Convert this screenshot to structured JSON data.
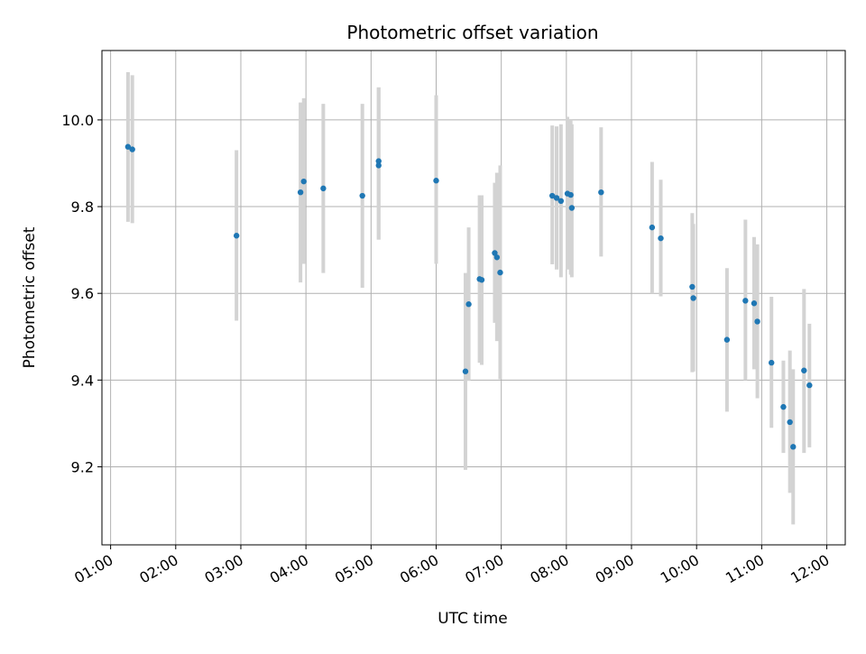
{
  "chart_data": {
    "type": "scatter",
    "title": "Photometric offset variation",
    "xlabel": "UTC time",
    "ylabel": "Photometric offset",
    "xlim": [
      "00:52",
      "12:17"
    ],
    "ylim": [
      9.02,
      10.16
    ],
    "grid": true,
    "x_ticks": [
      "01:00",
      "02:00",
      "03:00",
      "04:00",
      "05:00",
      "06:00",
      "07:00",
      "08:00",
      "09:00",
      "10:00",
      "11:00",
      "12:00"
    ],
    "y_ticks": [
      9.2,
      9.4,
      9.6,
      9.8,
      10.0
    ],
    "colors": {
      "marker": "#1f77b4",
      "errorbar": "#d3d3d3",
      "grid": "#b0b0b0"
    },
    "points": [
      {
        "x": "01:16",
        "y": 9.938,
        "ylo": 9.765,
        "yhi": 10.11
      },
      {
        "x": "01:20",
        "y": 9.932,
        "ylo": 9.762,
        "yhi": 10.103
      },
      {
        "x": "02:56",
        "y": 9.733,
        "ylo": 9.537,
        "yhi": 9.93
      },
      {
        "x": "03:55",
        "y": 9.833,
        "ylo": 9.625,
        "yhi": 10.04
      },
      {
        "x": "03:58",
        "y": 9.858,
        "ylo": 9.668,
        "yhi": 10.05
      },
      {
        "x": "04:16",
        "y": 9.842,
        "ylo": 9.647,
        "yhi": 10.037
      },
      {
        "x": "04:52",
        "y": 9.825,
        "ylo": 9.613,
        "yhi": 10.037
      },
      {
        "x": "05:07",
        "y": 9.895,
        "ylo": 9.724,
        "yhi": 10.075
      },
      {
        "x": "05:07",
        "y": 9.905,
        "ylo": 9.724,
        "yhi": 10.075
      },
      {
        "x": "06:00",
        "y": 9.86,
        "ylo": 9.668,
        "yhi": 10.057
      },
      {
        "x": "06:27",
        "y": 9.42,
        "ylo": 9.193,
        "yhi": 9.647
      },
      {
        "x": "06:30",
        "y": 9.575,
        "ylo": 9.398,
        "yhi": 9.752
      },
      {
        "x": "06:40",
        "y": 9.633,
        "ylo": 9.44,
        "yhi": 9.826
      },
      {
        "x": "06:42",
        "y": 9.631,
        "ylo": 9.435,
        "yhi": 9.826
      },
      {
        "x": "06:54",
        "y": 9.693,
        "ylo": 9.532,
        "yhi": 9.855
      },
      {
        "x": "06:56",
        "y": 9.683,
        "ylo": 9.49,
        "yhi": 9.878
      },
      {
        "x": "06:59",
        "y": 9.648,
        "ylo": 9.402,
        "yhi": 9.895
      },
      {
        "x": "07:47",
        "y": 9.825,
        "ylo": 9.667,
        "yhi": 9.987
      },
      {
        "x": "07:51",
        "y": 9.82,
        "ylo": 9.655,
        "yhi": 9.985
      },
      {
        "x": "07:55",
        "y": 9.813,
        "ylo": 9.637,
        "yhi": 9.99
      },
      {
        "x": "08:01",
        "y": 9.83,
        "ylo": 9.655,
        "yhi": 10.007
      },
      {
        "x": "08:04",
        "y": 9.827,
        "ylo": 9.643,
        "yhi": 10.0
      },
      {
        "x": "08:05",
        "y": 9.797,
        "ylo": 9.637,
        "yhi": 9.99
      },
      {
        "x": "08:32",
        "y": 9.833,
        "ylo": 9.685,
        "yhi": 9.983
      },
      {
        "x": "09:19",
        "y": 9.752,
        "ylo": 9.6,
        "yhi": 9.903
      },
      {
        "x": "09:27",
        "y": 9.727,
        "ylo": 9.593,
        "yhi": 9.862
      },
      {
        "x": "09:56",
        "y": 9.615,
        "ylo": 9.418,
        "yhi": 9.785
      },
      {
        "x": "09:57",
        "y": 9.589,
        "ylo": 9.42,
        "yhi": 9.76
      },
      {
        "x": "10:28",
        "y": 9.493,
        "ylo": 9.327,
        "yhi": 9.658
      },
      {
        "x": "10:45",
        "y": 9.583,
        "ylo": 9.4,
        "yhi": 9.77
      },
      {
        "x": "10:53",
        "y": 9.577,
        "ylo": 9.425,
        "yhi": 9.73
      },
      {
        "x": "10:56",
        "y": 9.535,
        "ylo": 9.358,
        "yhi": 9.713
      },
      {
        "x": "11:09",
        "y": 9.44,
        "ylo": 9.29,
        "yhi": 9.592
      },
      {
        "x": "11:20",
        "y": 9.338,
        "ylo": 9.232,
        "yhi": 9.445
      },
      {
        "x": "11:26",
        "y": 9.303,
        "ylo": 9.14,
        "yhi": 9.468
      },
      {
        "x": "11:29",
        "y": 9.246,
        "ylo": 9.067,
        "yhi": 9.425
      },
      {
        "x": "11:39",
        "y": 9.422,
        "ylo": 9.232,
        "yhi": 9.61
      },
      {
        "x": "11:44",
        "y": 9.388,
        "ylo": 9.245,
        "yhi": 9.53
      }
    ]
  }
}
